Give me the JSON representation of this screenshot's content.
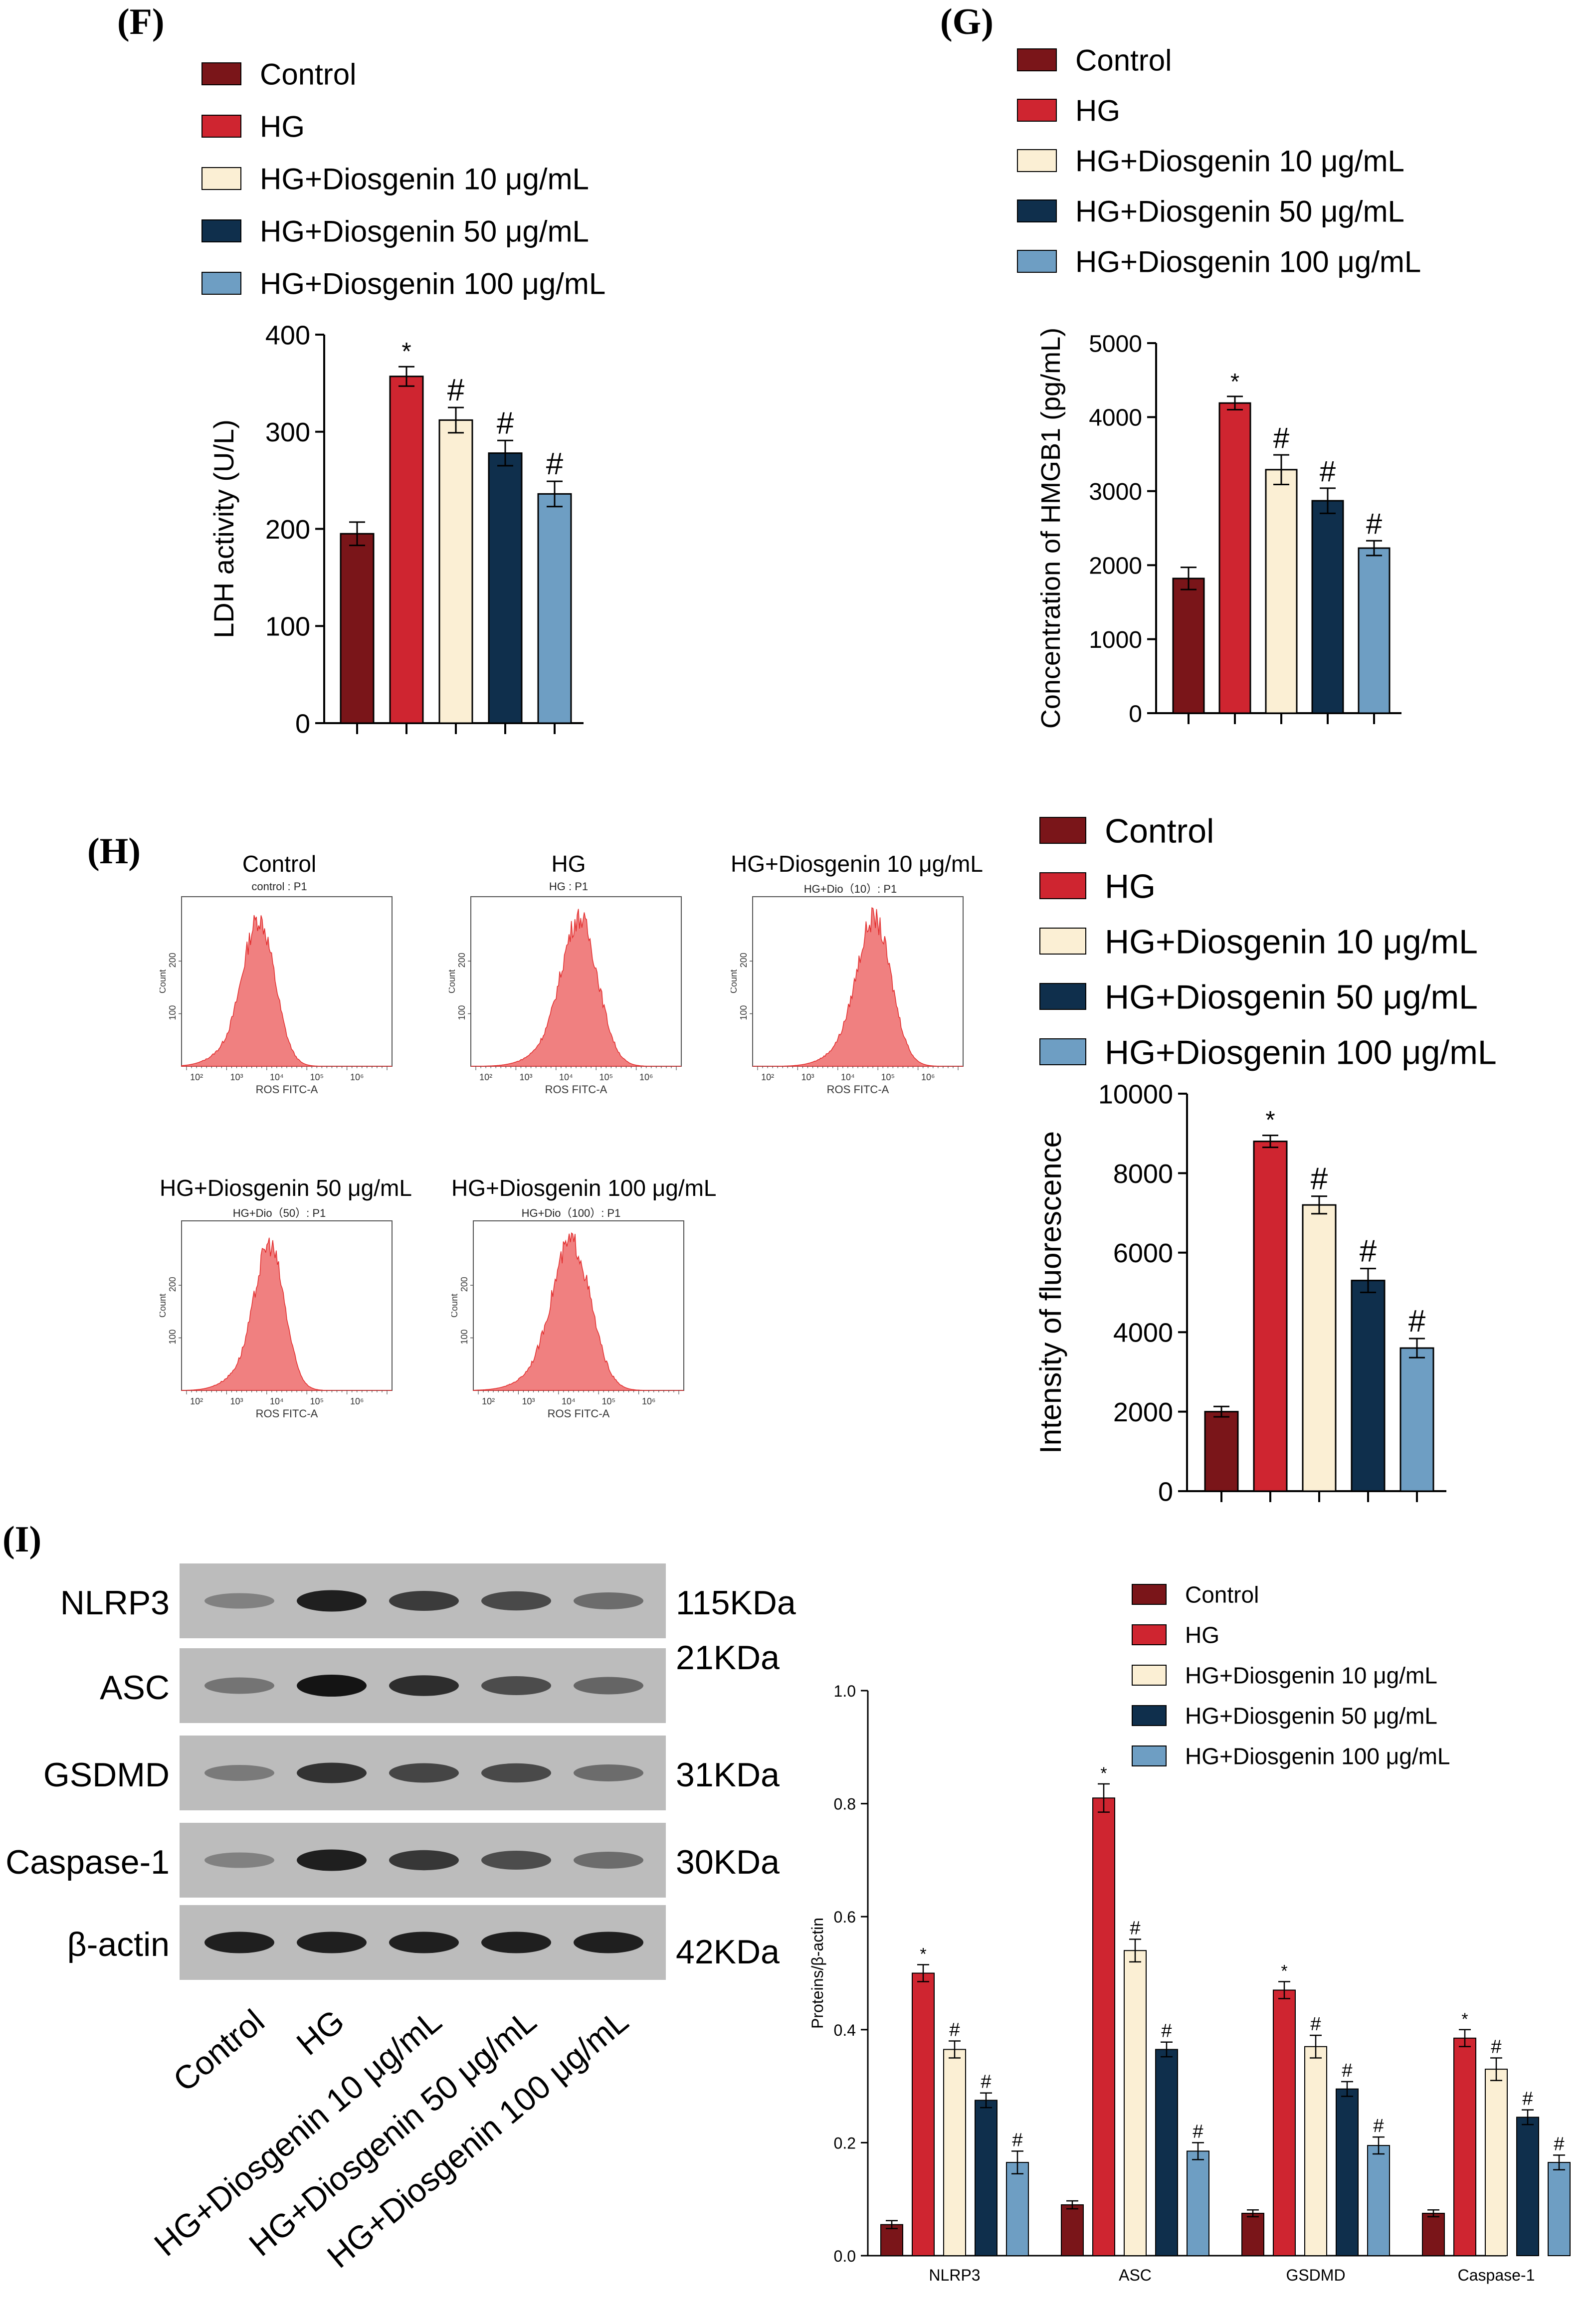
{
  "panels": {
    "F": "(F)",
    "G": "(G)",
    "H": "(H)",
    "I": "(I)"
  },
  "colors": {
    "control": "#7a1519",
    "hg": "#cf2530",
    "d10": "#fbefd4",
    "d50": "#0f2f4c",
    "d100": "#6e9ec3"
  },
  "chart_data": [
    {
      "id": "F",
      "type": "bar",
      "title": "",
      "legend": [
        "Control",
        "HG",
        "HG+Diosgenin 10 μg/mL",
        "HG+Diosgenin 50 μg/mL",
        "HG+Diosgenin 100 μg/mL"
      ],
      "values": [
        195,
        357,
        312,
        278,
        236
      ],
      "errors": [
        12,
        10,
        13,
        13,
        13
      ],
      "annotations": [
        "",
        "*",
        "#",
        "#",
        "#"
      ],
      "ylabel": "LDH activity (U/L)",
      "ylim": [
        0,
        400
      ],
      "yticks": [
        "0",
        "100",
        "200",
        "300",
        "400"
      ]
    },
    {
      "id": "G",
      "type": "bar",
      "title": "",
      "legend": [
        "Control",
        "HG",
        "HG+Diosgenin 10 μg/mL",
        "HG+Diosgenin 50 μg/mL",
        "HG+Diosgenin 100 μg/mL"
      ],
      "values": [
        1820,
        4190,
        3290,
        2870,
        2230
      ],
      "errors": [
        150,
        90,
        200,
        170,
        100
      ],
      "annotations": [
        "",
        "*",
        "#",
        "#",
        "#"
      ],
      "ylabel": "Concentration of HMGB1 (pg/mL)",
      "ylim": [
        0,
        5000
      ],
      "yticks": [
        "0",
        "1000",
        "2000",
        "3000",
        "4000",
        "5000"
      ]
    },
    {
      "id": "H",
      "type": "bar",
      "title": "",
      "legend": [
        "Control",
        "HG",
        "HG+Diosgenin 10 μg/mL",
        "HG+Diosgenin 50 μg/mL",
        "HG+Diosgenin 100 μg/mL"
      ],
      "values": [
        2000,
        8800,
        7200,
        5300,
        3600
      ],
      "errors": [
        130,
        150,
        220,
        300,
        240
      ],
      "annotations": [
        "",
        "*",
        "#",
        "#",
        "#"
      ],
      "ylabel": "Intensity of fluorescence",
      "ylim": [
        0,
        10000
      ],
      "yticks": [
        "0",
        "2000",
        "4000",
        "6000",
        "8000",
        "10000"
      ]
    },
    {
      "id": "I",
      "type": "bar",
      "title": "",
      "legend": [
        "Control",
        "HG",
        "HG+Diosgenin 10 μg/mL",
        "HG+Diosgenin 50 μg/mL",
        "HG+Diosgenin 100 μg/mL"
      ],
      "categories": [
        "NLRP3",
        "ASC",
        "GSDMD",
        "Caspase-1"
      ],
      "series": [
        {
          "name": "Control",
          "values": [
            0.055,
            0.09,
            0.075,
            0.075
          ],
          "errors": [
            0.007,
            0.007,
            0.006,
            0.006
          ],
          "annotations": [
            "",
            "",
            "",
            ""
          ]
        },
        {
          "name": "HG",
          "values": [
            0.5,
            0.81,
            0.47,
            0.385
          ],
          "errors": [
            0.015,
            0.025,
            0.015,
            0.015
          ],
          "annotations": [
            "*",
            "*",
            "*",
            "*"
          ]
        },
        {
          "name": "HG+Diosgenin 10 μg/mL",
          "values": [
            0.365,
            0.54,
            0.37,
            0.33
          ],
          "errors": [
            0.015,
            0.02,
            0.02,
            0.02
          ],
          "annotations": [
            "#",
            "#",
            "#",
            "#"
          ]
        },
        {
          "name": "HG+Diosgenin 50 μg/mL",
          "values": [
            0.275,
            0.365,
            0.295,
            0.245
          ],
          "errors": [
            0.013,
            0.013,
            0.013,
            0.013
          ],
          "annotations": [
            "#",
            "#",
            "#",
            "#"
          ]
        },
        {
          "name": "HG+Diosgenin 100 μg/mL",
          "values": [
            0.165,
            0.185,
            0.195,
            0.165
          ],
          "errors": [
            0.02,
            0.015,
            0.015,
            0.013
          ],
          "annotations": [
            "#",
            "#",
            "#",
            "#"
          ]
        }
      ],
      "ylabel": "Proteins/β-actin",
      "ylim": [
        0,
        1.0
      ],
      "yticks": [
        "0.0",
        "0.2",
        "0.4",
        "0.6",
        "0.8",
        "1.0"
      ]
    }
  ],
  "flow": {
    "xlabel": "ROS FITC-A",
    "ylabel": "Count",
    "yticks": [
      "100",
      "200"
    ],
    "xticks": [
      "10²",
      "10³",
      "10⁴",
      "10⁵",
      "10⁶"
    ],
    "plots": [
      {
        "title": "Control",
        "subtitle": "control : P1"
      },
      {
        "title": "HG",
        "subtitle": "HG : P1"
      },
      {
        "title": "HG+Diosgenin 10 μg/mL",
        "subtitle": "HG+Dio（10）: P1"
      },
      {
        "title": "HG+Diosgenin 50 μg/mL",
        "subtitle": "HG+Dio（50）: P1"
      },
      {
        "title": "HG+Diosgenin 100 μg/mL",
        "subtitle": "HG+Dio（100）: P1"
      }
    ]
  },
  "blot": {
    "rows": [
      {
        "protein": "NLRP3",
        "kda": "115KDa"
      },
      {
        "protein": "ASC",
        "kda": "21KDa"
      },
      {
        "protein": "GSDMD",
        "kda": "31KDa"
      },
      {
        "protein": "Caspase-1",
        "kda": "30KDa"
      },
      {
        "protein": "β-actin",
        "kda": "42KDa"
      }
    ],
    "lanes": [
      "Control",
      "HG",
      "HG+Diosgenin 10 μg/mL",
      "HG+Diosgenin 50 μg/mL",
      "HG+Diosgenin 100 μg/mL"
    ]
  }
}
